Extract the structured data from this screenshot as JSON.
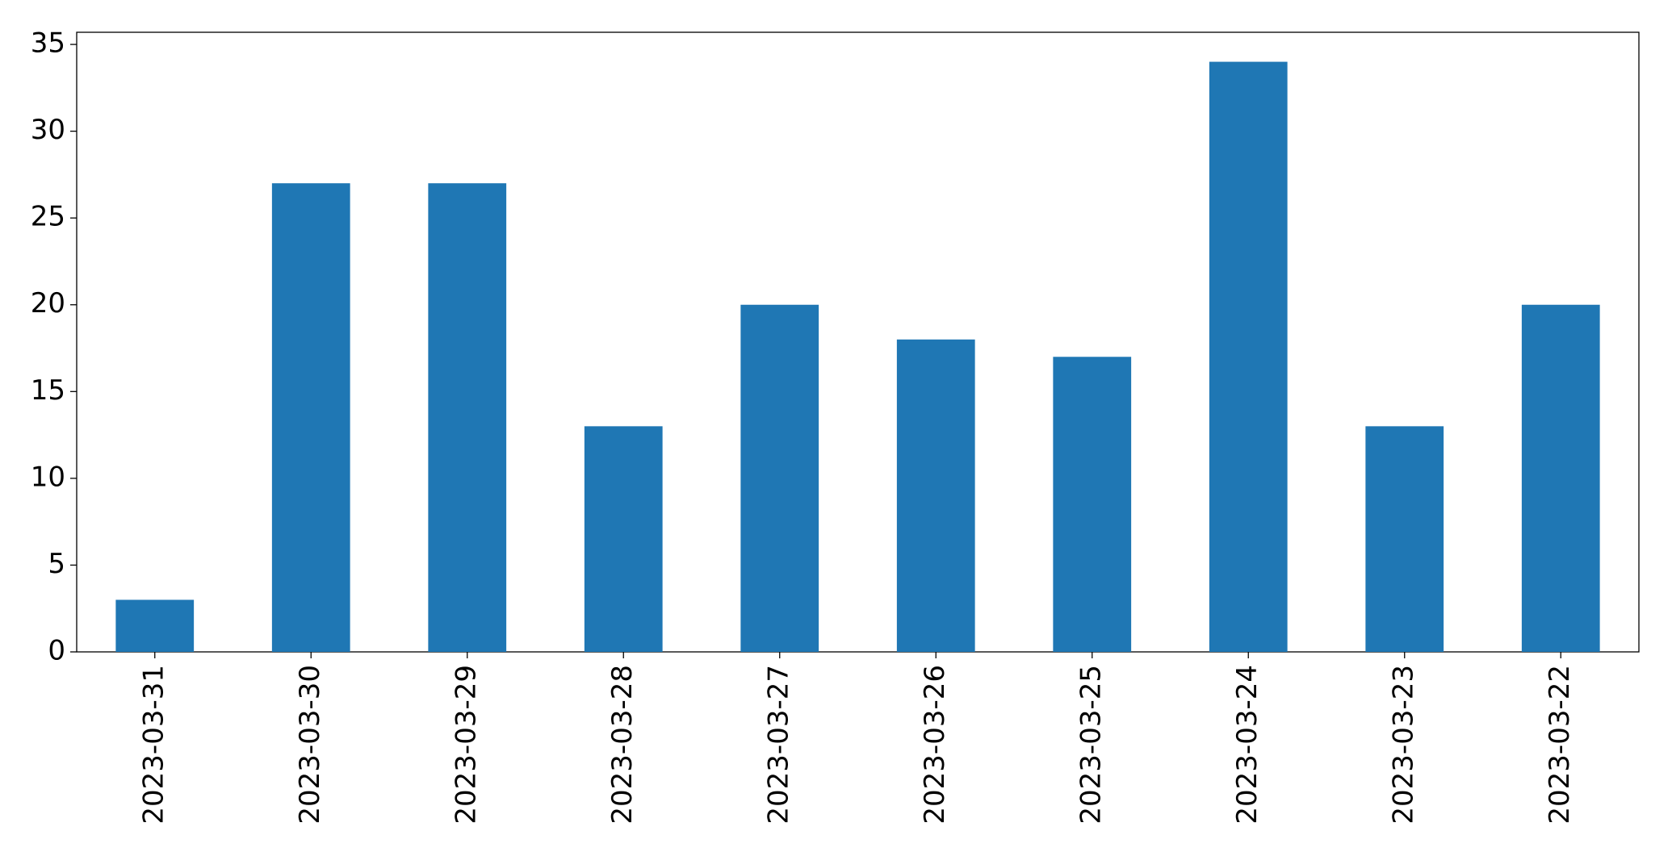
{
  "chart_data": {
    "type": "bar",
    "categories": [
      "2023-03-31",
      "2023-03-30",
      "2023-03-29",
      "2023-03-28",
      "2023-03-27",
      "2023-03-26",
      "2023-03-25",
      "2023-03-24",
      "2023-03-23",
      "2023-03-22"
    ],
    "values": [
      3,
      27,
      27,
      13,
      20,
      18,
      17,
      34,
      13,
      20
    ],
    "color": "#1f77b4",
    "ylim": [
      0,
      35.7
    ],
    "yticks": [
      0,
      5,
      10,
      15,
      20,
      25,
      30,
      35
    ],
    "grid": false
  }
}
